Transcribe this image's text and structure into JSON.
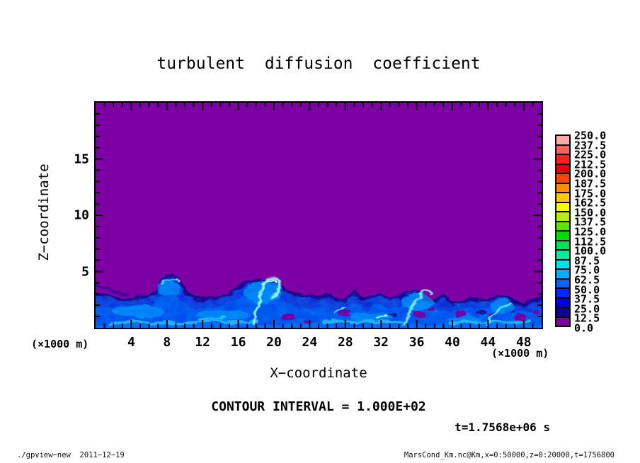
{
  "figure": {
    "title": "turbulent diffusion coefficient",
    "xlabel": "X−coordinate",
    "ylabel": "Z−coordinate",
    "x_unit_left": "(×1000 m)",
    "x_unit_right": "(×1000 m)",
    "contour_interval_label": "CONTOUR INTERVAL = 1.000E+02",
    "time_label": "t=1.7568e+06 s"
  },
  "footer": {
    "left": "./gpview−new  2011−12−19",
    "right": "MarsCond_Km.nc@Km,x=0:50000,z=0:20000,t=1756800"
  },
  "chart_data": {
    "type": "heatmap",
    "title": "turbulent diffusion coefficient",
    "xlabel": "X−coordinate (×1000 m)",
    "ylabel": "Z−coordinate (×1000 m)",
    "xlim": [
      0,
      50
    ],
    "zlim": [
      0,
      20
    ],
    "x_major_ticks": [
      4,
      8,
      12,
      16,
      20,
      24,
      28,
      32,
      36,
      40,
      44,
      48
    ],
    "x_minor_step": 1,
    "z_major_ticks": [
      5,
      10,
      15
    ],
    "z_minor_step": 1,
    "grid": false,
    "legend_position": "right-colorbar",
    "contour_interval": 100.0,
    "time_seconds": 1756800,
    "colorbar": {
      "levels": [
        0.0,
        12.5,
        25.0,
        37.5,
        50.0,
        62.5,
        75.0,
        87.5,
        100.0,
        112.5,
        125.0,
        137.5,
        150.0,
        162.5,
        175.0,
        187.5,
        200.0,
        212.5,
        225.0,
        237.5,
        250.0
      ],
      "labels_top_to_bottom": [
        "250.0",
        "237.5",
        "225.0",
        "212.5",
        "200.0",
        "187.5",
        "175.0",
        "162.5",
        "150.0",
        "137.5",
        "125.0",
        "112.5",
        "100.0",
        "87.5",
        "75.0",
        "62.5",
        "50.0",
        "37.5",
        "25.0",
        "12.5",
        "0.0"
      ],
      "colors_low_to_high": [
        "#7d00a4",
        "#12008e",
        "#0000dc",
        "#0028ff",
        "#0064ff",
        "#00b0ff",
        "#00e0ee",
        "#00ec9e",
        "#00e452",
        "#00dc00",
        "#5ce400",
        "#b4f000",
        "#fafa00",
        "#ffc800",
        "#ff8c00",
        "#ff4600",
        "#e60000",
        "#ff1e1e",
        "#ff6060",
        "#ffaaaa"
      ]
    },
    "field": {
      "background_value_range": [
        0,
        12.5
      ],
      "background_color": "#7d00a4",
      "description": "Km is near zero (purple) over most of the domain; a turbulent boundary layer of enhanced values (~25-150, blues and cyans) occupies z below about 2-4.5",
      "boundary_layer_top_km": {
        "x": [
          0,
          2,
          4,
          6,
          8,
          9,
          10,
          12,
          14,
          16,
          18,
          20,
          22,
          24,
          26,
          28,
          30,
          32,
          34,
          36,
          38,
          40,
          42,
          44,
          46,
          48,
          50
        ],
        "z": [
          3.1,
          2.7,
          2.5,
          2.7,
          4.5,
          4.4,
          3.2,
          2.5,
          2.7,
          3.6,
          4.3,
          4.0,
          2.9,
          2.9,
          2.9,
          2.4,
          2.5,
          3.0,
          2.7,
          3.3,
          2.3,
          2.1,
          2.7,
          2.5,
          2.6,
          2.0,
          2.7
        ]
      },
      "features": [
        "rising plume dome near x≈8–9 reaching z≈4.5",
        "large eddy with bright cyan hooked filament near x≈19–21",
        "bright cyan arc filament near x≈35–37",
        "slanted bright streak near x≈44–46",
        "small purple low-Km holes embedded in the layer near x≈21,28,36,41,48"
      ]
    }
  }
}
